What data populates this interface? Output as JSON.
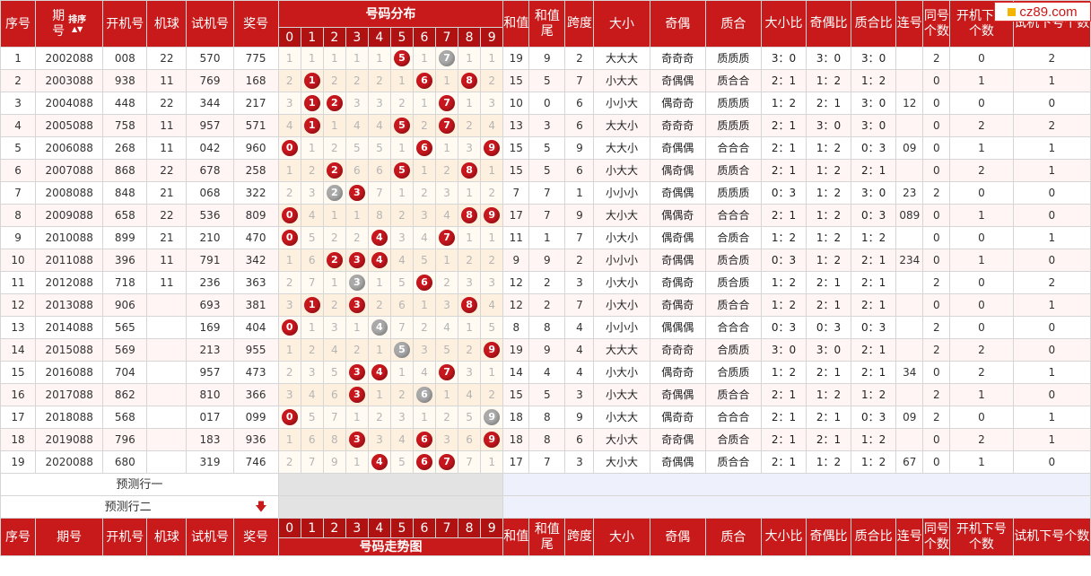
{
  "logo": {
    "text": "cz89.com"
  },
  "header": {
    "seq": "序号",
    "issue": "期号",
    "sort_label": "排序",
    "open": "开机号",
    "ball": "机球",
    "trial": "试机号",
    "prize": "奖号",
    "dist_title": "号码分布",
    "digits": [
      "0",
      "1",
      "2",
      "3",
      "4",
      "5",
      "6",
      "7",
      "8",
      "9"
    ],
    "sum": "和值",
    "sum_tail": "和值尾",
    "span": "跨度",
    "size": "大小",
    "oddeven": "奇偶",
    "prime": "质合",
    "size_ratio": "大小比",
    "oe_ratio": "奇偶比",
    "pc_ratio": "质合比",
    "consec": "连号",
    "same": "同号个数",
    "open_next": "开机下号个数",
    "trial_next": "试机下号个数"
  },
  "footer": {
    "seq": "序号",
    "issue": "期号",
    "open": "开机号",
    "ball": "机球",
    "trial": "试机号",
    "prize": "奖号",
    "chart_title": "号码走势图",
    "sum": "和值",
    "sum_tail": "和值尾",
    "span": "跨度",
    "size": "大小",
    "oddeven": "奇偶",
    "prime": "质合",
    "size_ratio": "大小比",
    "oe_ratio": "奇偶比",
    "pc_ratio": "质合比",
    "consec": "连号",
    "same": "同号个数",
    "open_next": "开机下号个数",
    "trial_next": "试机下号个数"
  },
  "predict": {
    "row1": "预测行一",
    "row2": "预测行二"
  },
  "rows": [
    {
      "seq": "1",
      "issue": "2002088",
      "open": "008",
      "ball": "22",
      "trial": "570",
      "prize": "775",
      "dist": [
        "1",
        "1",
        "1",
        "1",
        "1",
        "5",
        "1",
        "7",
        "1",
        "1"
      ],
      "balls": {
        "5": "r",
        "7": "g"
      },
      "sum": "19",
      "tail": "9",
      "span": "2",
      "size": "大大大",
      "oe": "奇奇奇",
      "pc": "质质质",
      "sr": "3：0",
      "oer": "3：0",
      "pcr": "3：0",
      "consec": "",
      "same": "2",
      "on": "0",
      "tn": "2"
    },
    {
      "seq": "2",
      "issue": "2003088",
      "open": "938",
      "ball": "11",
      "trial": "769",
      "prize": "168",
      "dist": [
        "2",
        "1",
        "2",
        "2",
        "2",
        "1",
        "6",
        "1",
        "8",
        "2"
      ],
      "balls": {
        "1": "r",
        "6": "r",
        "8": "r"
      },
      "sum": "15",
      "tail": "5",
      "span": "7",
      "size": "小大大",
      "oe": "奇偶偶",
      "pc": "质合合",
      "sr": "2：1",
      "oer": "1：2",
      "pcr": "1：2",
      "consec": "",
      "same": "0",
      "on": "1",
      "tn": "1"
    },
    {
      "seq": "3",
      "issue": "2004088",
      "open": "448",
      "ball": "22",
      "trial": "344",
      "prize": "217",
      "dist": [
        "3",
        "1",
        "2",
        "3",
        "3",
        "2",
        "1",
        "7",
        "1",
        "3"
      ],
      "balls": {
        "1": "r",
        "2": "r",
        "7": "r"
      },
      "sum": "10",
      "tail": "0",
      "span": "6",
      "size": "小小大",
      "oe": "偶奇奇",
      "pc": "质质质",
      "sr": "1：2",
      "oer": "2：1",
      "pcr": "3：0",
      "consec": "12",
      "same": "0",
      "on": "0",
      "tn": "0"
    },
    {
      "seq": "4",
      "issue": "2005088",
      "open": "758",
      "ball": "11",
      "trial": "957",
      "prize": "571",
      "dist": [
        "4",
        "1",
        "1",
        "4",
        "4",
        "5",
        "2",
        "7",
        "2",
        "4"
      ],
      "balls": {
        "1": "r",
        "5": "r",
        "7": "r"
      },
      "sum": "13",
      "tail": "3",
      "span": "6",
      "size": "大大小",
      "oe": "奇奇奇",
      "pc": "质质质",
      "sr": "2：1",
      "oer": "3：0",
      "pcr": "3：0",
      "consec": "",
      "same": "0",
      "on": "2",
      "tn": "2"
    },
    {
      "seq": "5",
      "issue": "2006088",
      "open": "268",
      "ball": "11",
      "trial": "042",
      "prize": "960",
      "dist": [
        "0",
        "1",
        "2",
        "5",
        "5",
        "1",
        "6",
        "1",
        "3",
        "9"
      ],
      "balls": {
        "0": "r",
        "6": "r",
        "9": "r"
      },
      "sum": "15",
      "tail": "5",
      "span": "9",
      "size": "大大小",
      "oe": "奇偶偶",
      "pc": "合合合",
      "sr": "2：1",
      "oer": "1：2",
      "pcr": "0：3",
      "consec": "09",
      "same": "0",
      "on": "1",
      "tn": "1"
    },
    {
      "seq": "6",
      "issue": "2007088",
      "open": "868",
      "ball": "22",
      "trial": "678",
      "prize": "258",
      "dist": [
        "1",
        "2",
        "2",
        "6",
        "6",
        "5",
        "1",
        "2",
        "8",
        "1"
      ],
      "balls": {
        "2": "r",
        "5": "r",
        "8": "r"
      },
      "sum": "15",
      "tail": "5",
      "span": "6",
      "size": "小大大",
      "oe": "偶奇偶",
      "pc": "质质合",
      "sr": "2：1",
      "oer": "1：2",
      "pcr": "2：1",
      "consec": "",
      "same": "0",
      "on": "2",
      "tn": "1"
    },
    {
      "seq": "7",
      "issue": "2008088",
      "open": "848",
      "ball": "21",
      "trial": "068",
      "prize": "322",
      "dist": [
        "2",
        "3",
        "2",
        "3",
        "7",
        "1",
        "2",
        "3",
        "1",
        "2"
      ],
      "balls": {
        "2": "g",
        "3": "r"
      },
      "sum": "7",
      "tail": "7",
      "span": "1",
      "size": "小小小",
      "oe": "奇偶偶",
      "pc": "质质质",
      "sr": "0：3",
      "oer": "1：2",
      "pcr": "3：0",
      "consec": "23",
      "same": "2",
      "on": "0",
      "tn": "0"
    },
    {
      "seq": "8",
      "issue": "2009088",
      "open": "658",
      "ball": "22",
      "trial": "536",
      "prize": "809",
      "dist": [
        "0",
        "4",
        "1",
        "1",
        "8",
        "2",
        "3",
        "4",
        "8",
        "9"
      ],
      "balls": {
        "0": "r",
        "8": "r",
        "9": "r"
      },
      "sum": "17",
      "tail": "7",
      "span": "9",
      "size": "大小大",
      "oe": "偶偶奇",
      "pc": "合合合",
      "sr": "2：1",
      "oer": "1：2",
      "pcr": "0：3",
      "consec": "089",
      "same": "0",
      "on": "1",
      "tn": "0"
    },
    {
      "seq": "9",
      "issue": "2010088",
      "open": "899",
      "ball": "21",
      "trial": "210",
      "prize": "470",
      "dist": [
        "0",
        "5",
        "2",
        "2",
        "4",
        "3",
        "4",
        "7",
        "1",
        "1"
      ],
      "balls": {
        "0": "r",
        "4": "r",
        "7": "r"
      },
      "sum": "11",
      "tail": "1",
      "span": "7",
      "size": "小大小",
      "oe": "偶奇偶",
      "pc": "合质合",
      "sr": "1：2",
      "oer": "1：2",
      "pcr": "1：2",
      "consec": "",
      "same": "0",
      "on": "0",
      "tn": "1"
    },
    {
      "seq": "10",
      "issue": "2011088",
      "open": "396",
      "ball": "11",
      "trial": "791",
      "prize": "342",
      "dist": [
        "1",
        "6",
        "2",
        "3",
        "4",
        "4",
        "5",
        "1",
        "2",
        "2"
      ],
      "balls": {
        "2": "r",
        "3": "r",
        "4": "r"
      },
      "sum": "9",
      "tail": "9",
      "span": "2",
      "size": "小小小",
      "oe": "奇偶偶",
      "pc": "质合质",
      "sr": "0：3",
      "oer": "1：2",
      "pcr": "2：1",
      "consec": "234",
      "same": "0",
      "on": "1",
      "tn": "0"
    },
    {
      "seq": "11",
      "issue": "2012088",
      "open": "718",
      "ball": "11",
      "trial": "236",
      "prize": "363",
      "dist": [
        "2",
        "7",
        "1",
        "3",
        "1",
        "5",
        "6",
        "2",
        "3",
        "3"
      ],
      "balls": {
        "3": "g",
        "6": "r"
      },
      "sum": "12",
      "tail": "2",
      "span": "3",
      "size": "小大小",
      "oe": "奇偶奇",
      "pc": "质合质",
      "sr": "1：2",
      "oer": "2：1",
      "pcr": "2：1",
      "consec": "",
      "same": "2",
      "on": "0",
      "tn": "2"
    },
    {
      "seq": "12",
      "issue": "2013088",
      "open": "906",
      "ball": "",
      "trial": "693",
      "prize": "381",
      "dist": [
        "3",
        "1",
        "2",
        "3",
        "2",
        "6",
        "1",
        "3",
        "8",
        "4"
      ],
      "balls": {
        "1": "r",
        "3": "r",
        "8": "r"
      },
      "sum": "12",
      "tail": "2",
      "span": "7",
      "size": "小大小",
      "oe": "奇偶奇",
      "pc": "质合合",
      "sr": "1：2",
      "oer": "2：1",
      "pcr": "2：1",
      "consec": "",
      "same": "0",
      "on": "0",
      "tn": "1"
    },
    {
      "seq": "13",
      "issue": "2014088",
      "open": "565",
      "ball": "",
      "trial": "169",
      "prize": "404",
      "dist": [
        "0",
        "1",
        "3",
        "1",
        "4",
        "7",
        "2",
        "4",
        "1",
        "5"
      ],
      "balls": {
        "0": "r",
        "4": "g"
      },
      "sum": "8",
      "tail": "8",
      "span": "4",
      "size": "小小小",
      "oe": "偶偶偶",
      "pc": "合合合",
      "sr": "0：3",
      "oer": "0：3",
      "pcr": "0：3",
      "consec": "",
      "same": "2",
      "on": "0",
      "tn": "0"
    },
    {
      "seq": "14",
      "issue": "2015088",
      "open": "569",
      "ball": "",
      "trial": "213",
      "prize": "955",
      "dist": [
        "1",
        "2",
        "4",
        "2",
        "1",
        "5",
        "3",
        "5",
        "2",
        "9"
      ],
      "balls": {
        "5": "g",
        "9": "r"
      },
      "sum": "19",
      "tail": "9",
      "span": "4",
      "size": "大大大",
      "oe": "奇奇奇",
      "pc": "合质质",
      "sr": "3：0",
      "oer": "3：0",
      "pcr": "2：1",
      "consec": "",
      "same": "2",
      "on": "2",
      "tn": "0"
    },
    {
      "seq": "15",
      "issue": "2016088",
      "open": "704",
      "ball": "",
      "trial": "957",
      "prize": "473",
      "dist": [
        "2",
        "3",
        "5",
        "3",
        "4",
        "1",
        "4",
        "7",
        "3",
        "1"
      ],
      "balls": {
        "3": "r",
        "4": "r",
        "7": "r"
      },
      "sum": "14",
      "tail": "4",
      "span": "4",
      "size": "小大小",
      "oe": "偶奇奇",
      "pc": "合质质",
      "sr": "1：2",
      "oer": "2：1",
      "pcr": "2：1",
      "consec": "34",
      "same": "0",
      "on": "2",
      "tn": "1"
    },
    {
      "seq": "16",
      "issue": "2017088",
      "open": "862",
      "ball": "",
      "trial": "810",
      "prize": "366",
      "dist": [
        "3",
        "4",
        "6",
        "3",
        "1",
        "2",
        "6",
        "1",
        "4",
        "2"
      ],
      "balls": {
        "3": "r",
        "6": "g"
      },
      "sum": "15",
      "tail": "5",
      "span": "3",
      "size": "小大大",
      "oe": "奇偶偶",
      "pc": "质合合",
      "sr": "2：1",
      "oer": "1：2",
      "pcr": "1：2",
      "consec": "",
      "same": "2",
      "on": "1",
      "tn": "0"
    },
    {
      "seq": "17",
      "issue": "2018088",
      "open": "568",
      "ball": "",
      "trial": "017",
      "prize": "099",
      "dist": [
        "0",
        "5",
        "7",
        "1",
        "2",
        "3",
        "1",
        "2",
        "5",
        "9"
      ],
      "balls": {
        "0": "r",
        "9": "g"
      },
      "sum": "18",
      "tail": "8",
      "span": "9",
      "size": "小大大",
      "oe": "偶奇奇",
      "pc": "合合合",
      "sr": "2：1",
      "oer": "2：1",
      "pcr": "0：3",
      "consec": "09",
      "same": "2",
      "on": "0",
      "tn": "1"
    },
    {
      "seq": "18",
      "issue": "2019088",
      "open": "796",
      "ball": "",
      "trial": "183",
      "prize": "936",
      "dist": [
        "1",
        "6",
        "8",
        "3",
        "3",
        "4",
        "6",
        "3",
        "6",
        "9"
      ],
      "balls": {
        "3": "r",
        "6": "r",
        "9": "r"
      },
      "sum": "18",
      "tail": "8",
      "span": "6",
      "size": "大小大",
      "oe": "奇奇偶",
      "pc": "合质合",
      "sr": "2：1",
      "oer": "2：1",
      "pcr": "1：2",
      "consec": "",
      "same": "0",
      "on": "2",
      "tn": "1"
    },
    {
      "seq": "19",
      "issue": "2020088",
      "open": "680",
      "ball": "",
      "trial": "319",
      "prize": "746",
      "dist": [
        "2",
        "7",
        "9",
        "1",
        "4",
        "5",
        "6",
        "7",
        "7",
        "1"
      ],
      "balls": {
        "4": "r",
        "6": "r",
        "7": "r"
      },
      "sum": "17",
      "tail": "7",
      "span": "3",
      "size": "大小大",
      "oe": "奇偶偶",
      "pc": "质合合",
      "sr": "2：1",
      "oer": "1：2",
      "pcr": "1：2",
      "consec": "67",
      "same": "0",
      "on": "1",
      "tn": "0"
    }
  ]
}
